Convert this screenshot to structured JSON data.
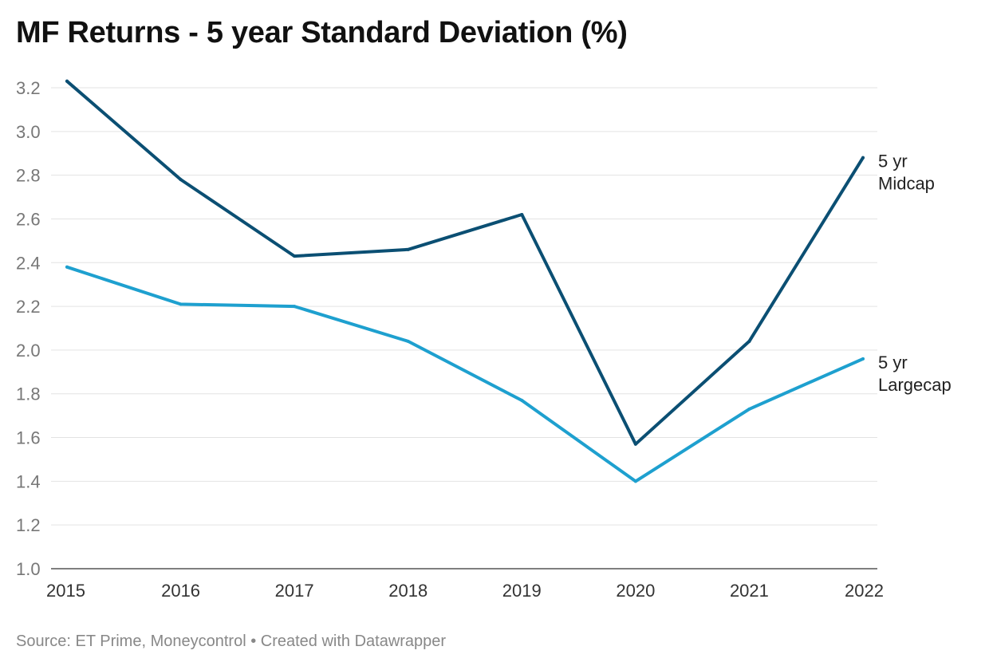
{
  "title": "MF Returns - 5 year Standard Deviation (%)",
  "footer": {
    "source_text": "Source: ET Prime, Moneycontrol • Created with Datawrapper"
  },
  "chart_data": {
    "type": "line",
    "title": "MF Returns - 5 year Standard Deviation (%)",
    "x": [
      "2015",
      "2016",
      "2017",
      "2018",
      "2019",
      "2020",
      "2021",
      "2022"
    ],
    "ylim": [
      1.0,
      3.2
    ],
    "y_ticks": [
      "1.0",
      "1.2",
      "1.4",
      "1.6",
      "1.8",
      "2.0",
      "2.2",
      "2.4",
      "2.6",
      "2.8",
      "3.0",
      "3.2"
    ],
    "grid": true,
    "legend": "direct labels at right end of lines",
    "series": [
      {
        "name_lines": [
          "5 yr",
          "Midcap"
        ],
        "color": "#0b4f73",
        "values": [
          3.23,
          2.78,
          2.43,
          2.46,
          2.62,
          1.57,
          2.04,
          2.88
        ]
      },
      {
        "name_lines": [
          "5 yr",
          "Largecap"
        ],
        "color": "#1ea0cf",
        "values": [
          2.38,
          2.21,
          2.2,
          2.04,
          1.77,
          1.4,
          1.73,
          1.96
        ]
      }
    ]
  }
}
